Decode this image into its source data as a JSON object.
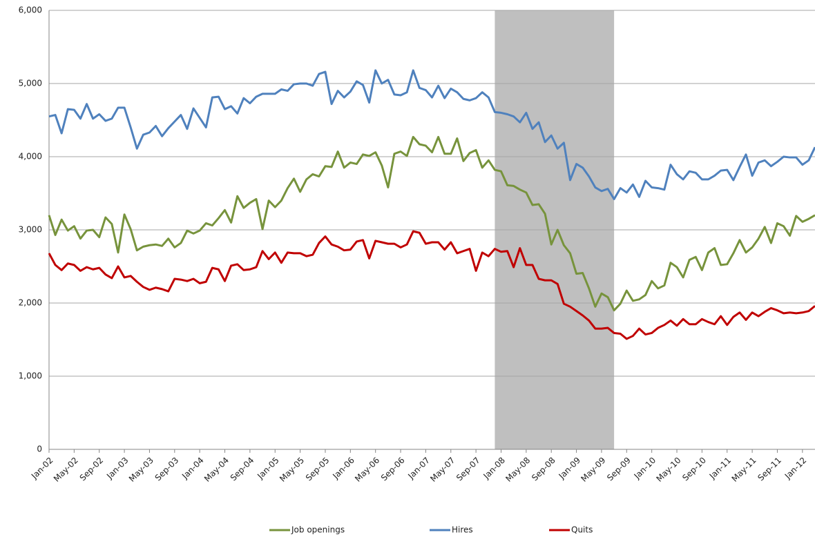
{
  "chart_data": {
    "type": "line",
    "categories": [
      "Jan-02",
      null,
      null,
      null,
      "May-02",
      null,
      null,
      null,
      "Sep-02",
      null,
      null,
      null,
      "Jan-03",
      null,
      null,
      null,
      "May-03",
      null,
      null,
      null,
      "Sep-03",
      null,
      null,
      null,
      "Jan-04",
      null,
      null,
      null,
      "May-04",
      null,
      null,
      null,
      "Sep-04",
      null,
      null,
      null,
      "Jan-05",
      null,
      null,
      null,
      "May-05",
      null,
      null,
      null,
      "Sep-05",
      null,
      null,
      null,
      "Jan-06",
      null,
      null,
      null,
      "May-06",
      null,
      null,
      null,
      "Sep-06",
      null,
      null,
      null,
      "Jan-07",
      null,
      null,
      null,
      "May-07",
      null,
      null,
      null,
      "Sep-07",
      null,
      null,
      null,
      "Jan-08",
      null,
      null,
      null,
      "May-08",
      null,
      null,
      null,
      "Sep-08",
      null,
      null,
      null,
      "Jan-09",
      null,
      null,
      null,
      "May-09",
      null,
      null,
      null,
      "Sep-09",
      null,
      null,
      null,
      "Jan-10",
      null,
      null,
      null,
      "May-10",
      null,
      null,
      null,
      "Sep-10",
      null,
      null,
      null,
      "Jan-11",
      null,
      null,
      null,
      "May-11",
      null,
      null,
      null,
      "Sep-11",
      null,
      null,
      null,
      "Jan-12",
      null,
      null
    ],
    "shaded_range": [
      71,
      90
    ],
    "series": [
      {
        "name": "Job openings",
        "color": "#77933c",
        "values": [
          3200,
          2930,
          3140,
          2990,
          3050,
          2880,
          2990,
          3000,
          2900,
          3170,
          3080,
          2690,
          3210,
          3010,
          2720,
          2770,
          2790,
          2800,
          2780,
          2880,
          2760,
          2820,
          2990,
          2950,
          2990,
          3090,
          3060,
          3160,
          3270,
          3100,
          3460,
          3300,
          3370,
          3420,
          3010,
          3400,
          3310,
          3400,
          3570,
          3700,
          3520,
          3690,
          3760,
          3730,
          3870,
          3860,
          4070,
          3850,
          3920,
          3900,
          4030,
          4010,
          4060,
          3880,
          3580,
          4040,
          4070,
          4010,
          4270,
          4170,
          4150,
          4060,
          4270,
          4040,
          4040,
          4250,
          3940,
          4050,
          4090,
          3850,
          3950,
          3820,
          3800,
          3610,
          3600,
          3550,
          3510,
          3340,
          3350,
          3220,
          2800,
          3000,
          2790,
          2680,
          2400,
          2410,
          2200,
          1950,
          2130,
          2080,
          1900,
          1990,
          2170,
          2030,
          2050,
          2110,
          2300,
          2200,
          2240,
          2550,
          2490,
          2350,
          2590,
          2630,
          2450,
          2690,
          2750,
          2520,
          2530,
          2680,
          2860,
          2690,
          2760,
          2880,
          3040,
          2820,
          3090,
          3050,
          2920,
          3190,
          3110,
          3150,
          3200
        ]
      },
      {
        "name": "Hires",
        "color": "#4f81bd",
        "values": [
          4550,
          4570,
          4320,
          4650,
          4640,
          4520,
          4720,
          4520,
          4580,
          4490,
          4520,
          4670,
          4670,
          4400,
          4110,
          4300,
          4330,
          4420,
          4280,
          4390,
          4480,
          4570,
          4380,
          4660,
          4530,
          4400,
          4810,
          4820,
          4650,
          4690,
          4590,
          4800,
          4730,
          4820,
          4860,
          4860,
          4860,
          4920,
          4900,
          4990,
          5000,
          5000,
          4970,
          5130,
          5160,
          4720,
          4900,
          4810,
          4890,
          5030,
          4980,
          4740,
          5180,
          5000,
          5050,
          4850,
          4840,
          4880,
          5180,
          4940,
          4910,
          4810,
          4970,
          4800,
          4930,
          4880,
          4790,
          4770,
          4800,
          4880,
          4810,
          4610,
          4600,
          4580,
          4550,
          4470,
          4600,
          4380,
          4470,
          4200,
          4290,
          4110,
          4190,
          3680,
          3900,
          3850,
          3730,
          3580,
          3530,
          3560,
          3420,
          3570,
          3510,
          3620,
          3450,
          3670,
          3580,
          3570,
          3550,
          3890,
          3760,
          3690,
          3800,
          3780,
          3690,
          3690,
          3740,
          3810,
          3820,
          3680,
          3860,
          4030,
          3740,
          3920,
          3950,
          3870,
          3930,
          4000,
          3990,
          3990,
          3890,
          3950,
          4130
        ]
      },
      {
        "name": "Quits",
        "color": "#c00000",
        "values": [
          2680,
          2520,
          2450,
          2540,
          2520,
          2440,
          2490,
          2460,
          2480,
          2390,
          2340,
          2500,
          2350,
          2370,
          2290,
          2220,
          2180,
          2210,
          2190,
          2160,
          2330,
          2320,
          2300,
          2330,
          2270,
          2290,
          2480,
          2460,
          2300,
          2510,
          2530,
          2450,
          2460,
          2490,
          2710,
          2600,
          2690,
          2550,
          2690,
          2680,
          2680,
          2640,
          2660,
          2820,
          2910,
          2800,
          2770,
          2720,
          2730,
          2840,
          2860,
          2610,
          2850,
          2830,
          2810,
          2810,
          2760,
          2800,
          2980,
          2960,
          2810,
          2830,
          2830,
          2730,
          2830,
          2680,
          2710,
          2740,
          2440,
          2690,
          2640,
          2740,
          2700,
          2710,
          2490,
          2750,
          2520,
          2520,
          2330,
          2310,
          2310,
          2260,
          1990,
          1950,
          1890,
          1830,
          1760,
          1650,
          1650,
          1660,
          1590,
          1580,
          1510,
          1550,
          1650,
          1570,
          1590,
          1660,
          1700,
          1760,
          1690,
          1780,
          1710,
          1710,
          1780,
          1740,
          1710,
          1820,
          1700,
          1810,
          1870,
          1770,
          1870,
          1820,
          1880,
          1930,
          1900,
          1860,
          1870,
          1860,
          1870,
          1890,
          1960
        ]
      }
    ],
    "ylim": [
      0,
      6000
    ],
    "yticks": [
      0,
      {
        "value": 1000,
        "label": "1,000"
      },
      {
        "value": 2000,
        "label": "2,000"
      },
      {
        "value": 3000,
        "label": "3,000"
      },
      {
        "value": 4000,
        "label": "4,000"
      },
      {
        "value": 5000,
        "label": "5,000"
      },
      {
        "value": 6000,
        "label": "6,000"
      }
    ],
    "grid": true,
    "legend": "bottom"
  }
}
